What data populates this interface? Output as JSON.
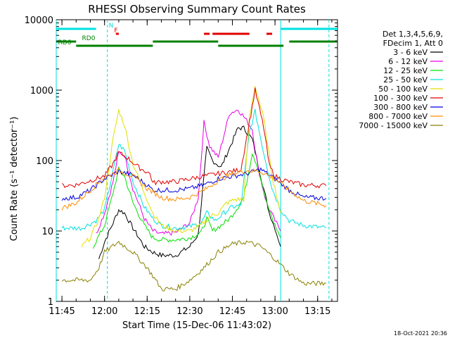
{
  "chart_data": {
    "type": "line",
    "title": "RHESSI Observing Summary Count Rates",
    "xlabel": "Start Time (15-Dec-06 11:43:02)",
    "ylabel": "Count Rate (s⁻¹ detector⁻¹)",
    "y_scale": "log",
    "ylim": [
      1,
      10000
    ],
    "xlim": [
      "11:43",
      "13:22"
    ],
    "y_ticks": [
      "1",
      "10",
      "100",
      "1000",
      "10000"
    ],
    "x_ticks": [
      "11:45",
      "12:00",
      "12:15",
      "12:30",
      "12:45",
      "13:00",
      "13:15"
    ],
    "footer_date": "18-Oct-2021 20:36",
    "legend": {
      "position": "right",
      "header": [
        "Det 1,3,4,5,6,9,",
        "FDecim 1, Att 0"
      ],
      "entries": [
        {
          "label": "3 - 6 keV",
          "color": "#000000"
        },
        {
          "label": "6 - 12 keV",
          "color": "#e600e6"
        },
        {
          "label": "12 - 25 keV",
          "color": "#00e000"
        },
        {
          "label": "25 - 50 keV",
          "color": "#00e0e0"
        },
        {
          "label": "50 - 100 keV",
          "color": "#e0e000"
        },
        {
          "label": "100 - 300 keV",
          "color": "#e00000"
        },
        {
          "label": "300 - 800 keV",
          "color": "#0000e0"
        },
        {
          "label": "800 - 7000 keV",
          "color": "#ff8c00"
        },
        {
          "label": "7000 - 15000 keV",
          "color": "#888000"
        }
      ]
    },
    "series": [
      {
        "name": "3 - 6 keV",
        "color": "#000000",
        "x": [
          "11:58",
          "12:00",
          "12:03",
          "12:05",
          "12:07",
          "12:10",
          "12:14",
          "12:17",
          "12:20",
          "12:25",
          "12:30",
          "12:33",
          "12:36",
          "12:38",
          "12:41",
          "12:44",
          "12:47",
          "12:49",
          "12:52",
          "12:55",
          "12:58",
          "13:00",
          "13:02"
        ],
        "y": [
          4,
          7,
          13,
          20,
          18,
          11,
          6,
          5,
          4.5,
          4.5,
          6,
          9,
          150,
          100,
          80,
          150,
          290,
          290,
          200,
          60,
          18,
          11,
          6
        ]
      },
      {
        "name": "6 - 12 keV",
        "color": "#e600e6",
        "x": [
          "11:57",
          "12:00",
          "12:03",
          "12:05",
          "12:07",
          "12:10",
          "12:14",
          "12:17",
          "12:20",
          "12:25",
          "12:30",
          "12:33",
          "12:35",
          "12:37",
          "12:40",
          "12:44",
          "12:47",
          "12:49",
          "12:52",
          "12:54",
          "12:57",
          "13:00",
          "13:02"
        ],
        "y": [
          9,
          18,
          50,
          130,
          120,
          40,
          15,
          10,
          9,
          9.5,
          13,
          30,
          350,
          160,
          110,
          470,
          530,
          420,
          280,
          80,
          25,
          14,
          10
        ]
      },
      {
        "name": "12 - 25 keV",
        "color": "#00e000",
        "x": [
          "11:56",
          "12:00",
          "12:03",
          "12:05",
          "12:07",
          "12:10",
          "12:14",
          "12:17",
          "12:20",
          "12:25",
          "12:30",
          "12:34",
          "12:36",
          "12:38",
          "12:41",
          "12:44",
          "12:47",
          "12:49",
          "12:52",
          "12:54",
          "12:57",
          "13:00",
          "13:02"
        ],
        "y": [
          6,
          12,
          35,
          75,
          60,
          25,
          12,
          8,
          7.5,
          7.5,
          8,
          9.5,
          15,
          10,
          12,
          15,
          22,
          30,
          130,
          80,
          25,
          12,
          8
        ]
      },
      {
        "name": "25 - 50 keV",
        "color": "#00e0e0",
        "x": [
          "11:45",
          "11:52",
          "11:57",
          "12:00",
          "12:03",
          "12:05",
          "12:07",
          "12:10",
          "12:14",
          "12:17",
          "12:20",
          "12:25",
          "12:30",
          "12:34",
          "12:36",
          "12:39",
          "12:42",
          "12:45",
          "12:48",
          "12:51",
          "12:53",
          "12:56",
          "12:59",
          "13:02",
          "13:05",
          "13:10",
          "13:18"
        ],
        "y": [
          11,
          11,
          14,
          20,
          70,
          170,
          140,
          50,
          22,
          15,
          12,
          11,
          11.5,
          13,
          18,
          14,
          18,
          22,
          23,
          250,
          500,
          130,
          40,
          20,
          14,
          12,
          11
        ]
      },
      {
        "name": "50 - 100 keV",
        "color": "#e0e000",
        "x": [
          "11:52",
          "11:55",
          "11:58",
          "12:00",
          "12:03",
          "12:05",
          "12:07",
          "12:10",
          "12:14",
          "12:17",
          "12:20",
          "12:25",
          "12:30",
          "12:34",
          "12:37",
          "12:40",
          "12:43",
          "12:46",
          "12:49",
          "12:51",
          "12:53",
          "12:56",
          "12:59",
          "13:02"
        ],
        "y": [
          6,
          8,
          15,
          30,
          200,
          520,
          320,
          90,
          35,
          18,
          12,
          10,
          10,
          12,
          16,
          18,
          25,
          28,
          28,
          400,
          1150,
          400,
          60,
          18
        ]
      },
      {
        "name": "100 - 300 keV",
        "color": "#e00000",
        "x": [
          "11:45",
          "11:50",
          "11:55",
          "12:00",
          "12:03",
          "12:05",
          "12:08",
          "12:12",
          "12:16",
          "12:17",
          "12:20",
          "12:25",
          "12:30",
          "12:35",
          "12:40",
          "12:45",
          "12:48",
          "12:51",
          "12:53",
          "12:56",
          "12:58",
          "13:00",
          "13:02",
          "13:05",
          "13:10",
          "13:18"
        ],
        "y": [
          44,
          45,
          52,
          60,
          90,
          130,
          110,
          80,
          65,
          48,
          50,
          50,
          55,
          60,
          65,
          70,
          75,
          350,
          1000,
          300,
          85,
          60,
          55,
          50,
          45,
          44
        ]
      },
      {
        "name": "300 - 800 keV",
        "color": "#0000e0",
        "x": [
          "11:45",
          "11:50",
          "11:55",
          "12:00",
          "12:05",
          "12:10",
          "12:15",
          "12:17",
          "12:20",
          "12:25",
          "12:30",
          "12:35",
          "12:40",
          "12:45",
          "12:50",
          "12:55",
          "13:00",
          "13:05",
          "13:10",
          "13:18"
        ],
        "y": [
          29,
          30,
          38,
          55,
          70,
          62,
          45,
          38,
          38,
          38,
          40,
          45,
          55,
          60,
          65,
          75,
          55,
          38,
          30,
          29
        ]
      },
      {
        "name": "800 - 7000 keV",
        "color": "#ff8c00",
        "x": [
          "11:45",
          "11:50",
          "11:55",
          "12:00",
          "12:05",
          "12:10",
          "12:15",
          "12:20",
          "12:25",
          "12:30",
          "12:35",
          "12:40",
          "12:45",
          "12:50",
          "12:55",
          "13:00",
          "13:05",
          "13:10",
          "13:18"
        ],
        "y": [
          21,
          25,
          38,
          58,
          72,
          60,
          40,
          30,
          28,
          30,
          38,
          52,
          65,
          72,
          70,
          55,
          38,
          27,
          23
        ]
      },
      {
        "name": "7000 - 15000 keV",
        "color": "#888000",
        "x": [
          "11:45",
          "11:55",
          "11:58",
          "12:00",
          "12:05",
          "12:10",
          "12:15",
          "12:18",
          "12:20",
          "12:25",
          "12:30",
          "12:35",
          "12:40",
          "12:45",
          "12:50",
          "12:55",
          "13:00",
          "13:05",
          "13:10",
          "13:18"
        ],
        "y": [
          2,
          2,
          3,
          5,
          7,
          5,
          3,
          2,
          1.5,
          1.5,
          2,
          3,
          5,
          6.5,
          7,
          6,
          4,
          2.5,
          1.8,
          1.8
        ]
      }
    ],
    "flag_bars": [
      {
        "label": "N",
        "color": "#00e0e0",
        "segments": [
          [
            "11:43",
            "11:57"
          ],
          [
            "13:02",
            "13:22"
          ]
        ]
      },
      {
        "label": "F",
        "color": "#e00000",
        "segments": [
          [
            "12:04",
            "12:05"
          ],
          [
            "12:35",
            "12:37"
          ],
          [
            "12:38",
            "12:51"
          ],
          [
            "12:57",
            "12:59"
          ]
        ]
      },
      {
        "label": "RD0",
        "color": "#008000",
        "segments": [
          [
            "11:43",
            "11:50"
          ],
          [
            "12:17",
            "12:40"
          ],
          [
            "13:05",
            "13:22"
          ]
        ]
      },
      {
        "label": "RD6",
        "color": "#008000",
        "segments": [
          [
            "11:50",
            "12:17"
          ],
          [
            "12:40",
            "13:03"
          ]
        ]
      }
    ],
    "vertical_markers": [
      {
        "x": "11:43",
        "style": "solid",
        "color": "#00e0e0"
      },
      {
        "x": "12:01",
        "style": "dashed",
        "color": "#00e0e0"
      },
      {
        "x": "13:02",
        "style": "solid",
        "color": "#00e0e0"
      },
      {
        "x": "13:19",
        "style": "dashed",
        "color": "#00e0e0"
      }
    ]
  }
}
